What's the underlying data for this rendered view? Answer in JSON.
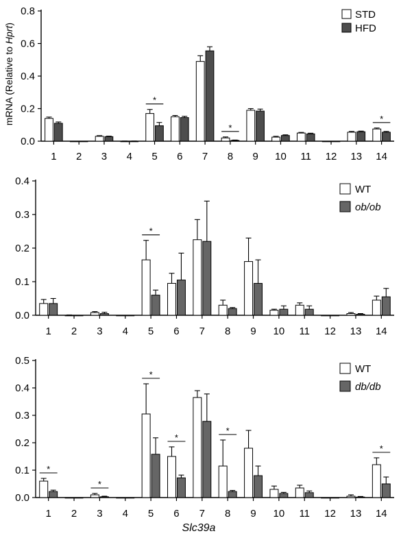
{
  "chart_data": [
    {
      "type": "bar",
      "categories": [
        "1",
        "2",
        "3",
        "4",
        "5",
        "6",
        "7",
        "8",
        "9",
        "10",
        "11",
        "12",
        "13",
        "14"
      ],
      "ylabel_prefix": "mRNA (Relative to ",
      "ylabel_italic": "Hprt",
      "ylabel_suffix": ")",
      "xlabel": "",
      "ylim": [
        0,
        0.8
      ],
      "yticks": [
        "0.0",
        "0.2",
        "0.4",
        "0.6",
        "0.8"
      ],
      "legend": "top-right",
      "series": [
        {
          "name": "STD",
          "color": "#ffffff",
          "values": [
            0.14,
            0.0,
            0.03,
            0.0,
            0.17,
            0.15,
            0.49,
            0.02,
            0.19,
            0.025,
            0.05,
            0.0,
            0.055,
            0.075
          ],
          "errors": [
            0.008,
            0,
            0.004,
            0.001,
            0.025,
            0.008,
            0.035,
            0.006,
            0.01,
            0.005,
            0.004,
            0,
            0.005,
            0.006
          ]
        },
        {
          "name": "HFD",
          "color": "#4d4d4d",
          "values": [
            0.11,
            0.0,
            0.028,
            0.0,
            0.095,
            0.145,
            0.555,
            0.005,
            0.185,
            0.035,
            0.045,
            0.0,
            0.058,
            0.055
          ],
          "errors": [
            0.008,
            0,
            0.003,
            0.001,
            0.02,
            0.008,
            0.025,
            0.002,
            0.012,
            0.004,
            0.004,
            0,
            0.004,
            0.005
          ]
        }
      ],
      "significance": [
        "5",
        "8",
        "14"
      ],
      "sig_mark": "*"
    },
    {
      "type": "bar",
      "categories": [
        "1",
        "2",
        "3",
        "4",
        "5",
        "6",
        "7",
        "8",
        "9",
        "10",
        "11",
        "12",
        "13",
        "14"
      ],
      "xlabel": "",
      "ylim": [
        0,
        0.4
      ],
      "yticks": [
        "0.0",
        "0.1",
        "0.2",
        "0.3",
        "0.4"
      ],
      "legend": "top-right",
      "series": [
        {
          "name": "WT",
          "color": "#ffffff",
          "values": [
            0.035,
            0.0,
            0.008,
            0.0,
            0.165,
            0.095,
            0.225,
            0.03,
            0.16,
            0.015,
            0.03,
            0.0,
            0.005,
            0.045
          ],
          "errors": [
            0.012,
            0.001,
            0.003,
            0.0,
            0.058,
            0.03,
            0.06,
            0.015,
            0.07,
            0.003,
            0.007,
            0.0,
            0.003,
            0.012
          ]
        },
        {
          "name": "ob/ob",
          "color": "#666666",
          "values": [
            0.035,
            0.0,
            0.005,
            0.0,
            0.06,
            0.105,
            0.22,
            0.02,
            0.095,
            0.018,
            0.018,
            0.0,
            0.003,
            0.055
          ],
          "errors": [
            0.015,
            0.0,
            0.004,
            0.0,
            0.015,
            0.08,
            0.12,
            0.003,
            0.07,
            0.01,
            0.01,
            0.0,
            0.002,
            0.025
          ]
        }
      ],
      "significance": [
        "5"
      ],
      "sig_mark": "*"
    },
    {
      "type": "bar",
      "categories": [
        "1",
        "2",
        "3",
        "4",
        "5",
        "6",
        "7",
        "8",
        "9",
        "10",
        "11",
        "12",
        "13",
        "14"
      ],
      "xlabel": "Slc39a",
      "ylim": [
        0,
        0.5
      ],
      "yticks": [
        "0.0",
        "0.1",
        "0.2",
        "0.3",
        "0.4",
        "0.5"
      ],
      "legend": "top-right",
      "series": [
        {
          "name": "WT",
          "color": "#ffffff",
          "values": [
            0.06,
            0.0,
            0.01,
            0.0,
            0.305,
            0.15,
            0.365,
            0.115,
            0.18,
            0.03,
            0.035,
            0.0,
            0.005,
            0.12
          ],
          "errors": [
            0.01,
            0.0,
            0.005,
            0.0,
            0.11,
            0.035,
            0.025,
            0.095,
            0.065,
            0.012,
            0.01,
            0.0,
            0.005,
            0.025
          ]
        },
        {
          "name": "db/db",
          "color": "#666666",
          "values": [
            0.022,
            0.0,
            0.003,
            0.0,
            0.158,
            0.072,
            0.278,
            0.022,
            0.08,
            0.015,
            0.018,
            0.0,
            0.002,
            0.05
          ],
          "errors": [
            0.005,
            0.0,
            0.002,
            0.0,
            0.06,
            0.01,
            0.1,
            0.004,
            0.035,
            0.004,
            0.006,
            0.0,
            0.002,
            0.025
          ]
        }
      ],
      "significance": [
        "1",
        "3",
        "5",
        "6",
        "8",
        "14"
      ],
      "sig_mark": "*"
    }
  ]
}
